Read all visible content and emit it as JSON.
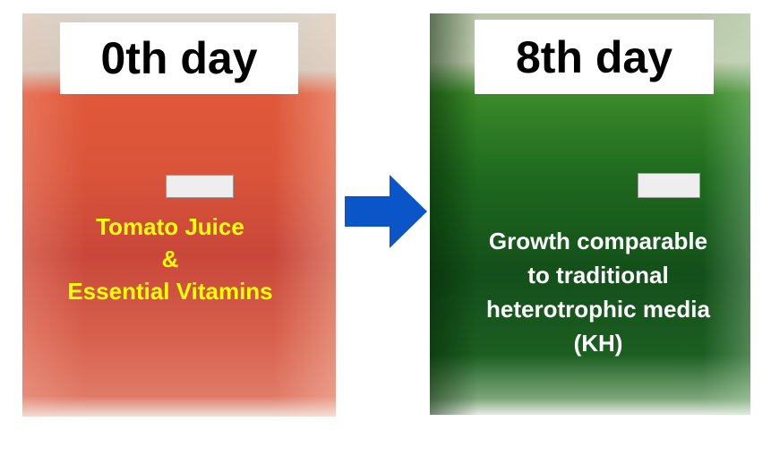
{
  "before": {
    "day_label": "0th day",
    "caption": [
      "Tomato Juice",
      "&",
      "Essential Vitamins"
    ],
    "caption_color": "#ffff00",
    "liquid_color": "#d9543a"
  },
  "after": {
    "day_label": "8th day",
    "caption": [
      "Growth comparable",
      "to traditional",
      "heterotrophic media",
      "(KH)"
    ],
    "caption_color": "#ffffff",
    "liquid_color": "#1f6a1f"
  },
  "arrow": {
    "icon": "arrow-right-icon",
    "color": "#0a56c8"
  }
}
